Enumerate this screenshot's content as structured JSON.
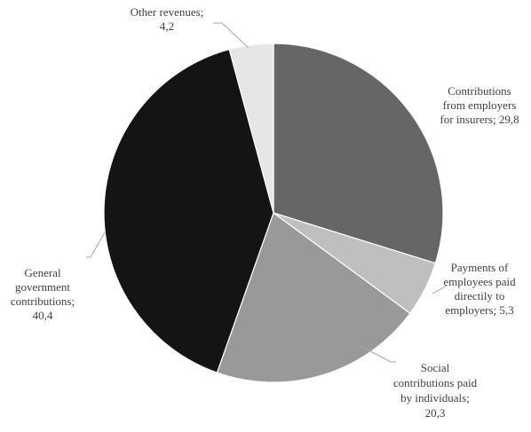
{
  "chart_data": {
    "type": "pie",
    "title": "",
    "slices": [
      {
        "name": "Contributions from employers for insurers",
        "value": 29.8,
        "label_lines": [
          "Contributions",
          "from employers",
          "for insurers; 29,8"
        ],
        "color": "#666666"
      },
      {
        "name": "Payments of employees paid directily to employers",
        "value": 5.3,
        "label_lines": [
          "Payments of",
          "employees paid",
          "directily to",
          "employers; 5,3"
        ],
        "color": "#bfbfbf"
      },
      {
        "name": "Social contributions paid by individuals",
        "value": 20.3,
        "label_lines": [
          "Social",
          "contributions paid",
          "by individuals;",
          "20,3"
        ],
        "color": "#999999"
      },
      {
        "name": "General government contributions",
        "value": 40.4,
        "label_lines": [
          "General",
          "government",
          "contributions;",
          "40,4"
        ],
        "color": "#141414"
      },
      {
        "name": "Other revenues",
        "value": 4.2,
        "label_lines": [
          "Other revenues;",
          "4,2"
        ],
        "color": "#e6e6e6"
      }
    ],
    "start_angle": "12 o'clock",
    "direction": "clockwise",
    "legend": "none"
  }
}
